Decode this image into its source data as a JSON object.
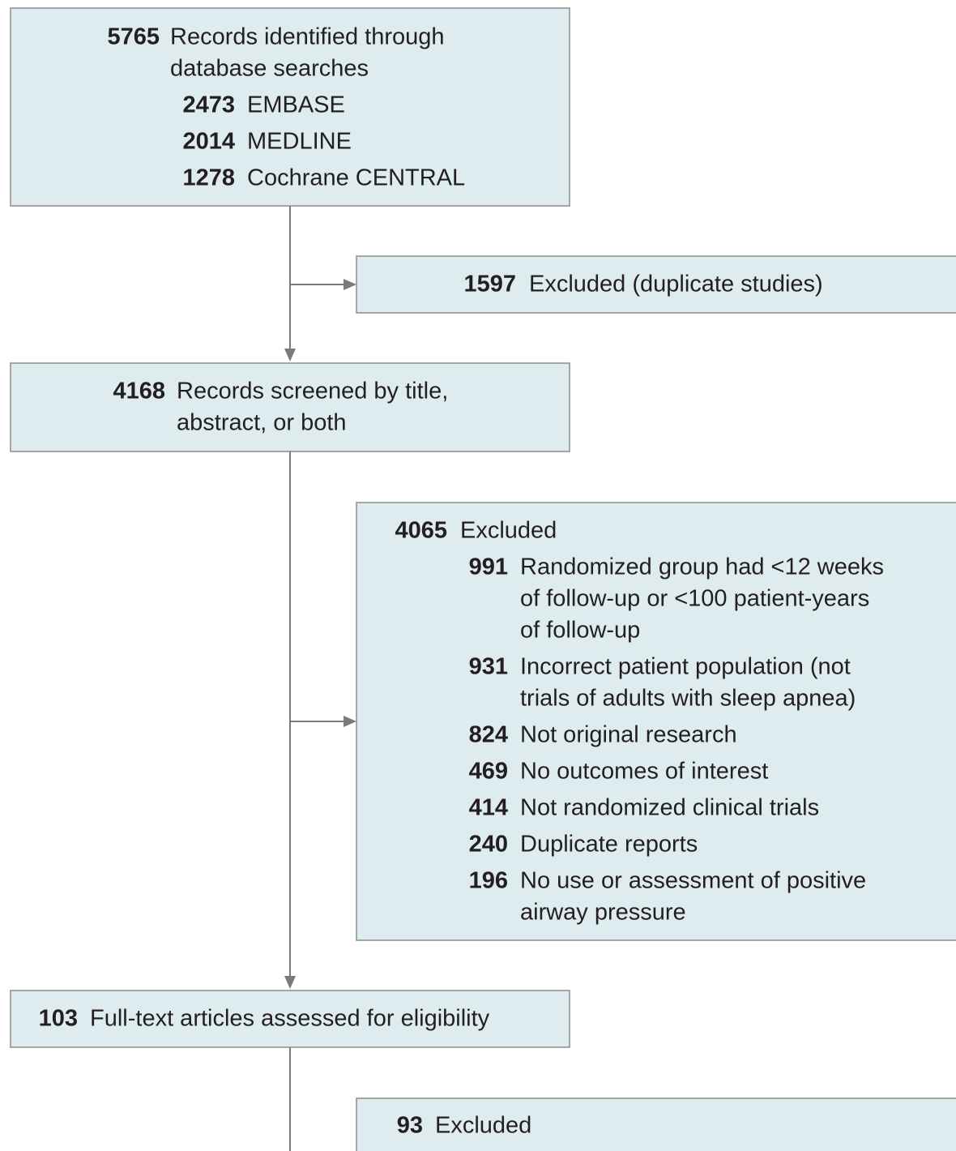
{
  "nodes": [
    {
      "count": 5765,
      "label": [
        "Records identified through",
        "database searches"
      ],
      "items": [
        {
          "count": 2473,
          "label": [
            "EMBASE"
          ]
        },
        {
          "count": 2014,
          "label": [
            "MEDLINE"
          ]
        },
        {
          "count": 1278,
          "label": [
            "Cochrane CENTRAL"
          ]
        }
      ]
    },
    {
      "count": 1597,
      "label": [
        "Excluded (duplicate studies)"
      ],
      "items": []
    },
    {
      "count": 4168,
      "label": [
        "Records screened by title,",
        "abstract, or both"
      ],
      "items": []
    },
    {
      "count": 4065,
      "label": [
        "Excluded"
      ],
      "items": [
        {
          "count": 991,
          "label": [
            "Randomized group had <12 weeks",
            "of follow-up or <100 patient-years",
            "of follow-up"
          ]
        },
        {
          "count": 931,
          "label": [
            "Incorrect patient population (not",
            "trials of adults with sleep apnea)"
          ]
        },
        {
          "count": 824,
          "label": [
            "Not original research"
          ]
        },
        {
          "count": 469,
          "label": [
            "No outcomes of interest"
          ]
        },
        {
          "count": 414,
          "label": [
            "Not randomized clinical trials"
          ]
        },
        {
          "count": 240,
          "label": [
            "Duplicate reports"
          ]
        },
        {
          "count": 196,
          "label": [
            "No use or assessment of positive",
            "airway pressure"
          ]
        }
      ]
    },
    {
      "count": 103,
      "label": [
        "Full-text articles assessed for eligibility"
      ],
      "items": []
    },
    {
      "count": 93,
      "label": [
        "Excluded"
      ],
      "items": []
    }
  ]
}
